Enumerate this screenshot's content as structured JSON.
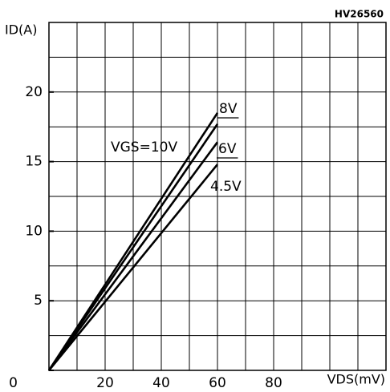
{
  "chart_data": {
    "type": "line",
    "annotation": "HV26560",
    "y_label": "ID(A)",
    "x_label": "VDS(mV)",
    "x": [
      0,
      60
    ],
    "series": [
      {
        "name": "VGS=10V",
        "color": "#000000",
        "values": [
          0,
          18.5
        ]
      },
      {
        "name": "8V",
        "color": "#000000",
        "values": [
          0,
          17.7
        ]
      },
      {
        "name": "6V",
        "color": "#000000",
        "values": [
          0,
          16.4
        ]
      },
      {
        "name": "4.5V",
        "color": "#000000",
        "values": [
          0,
          14.8
        ]
      }
    ],
    "xlim": [
      0,
      120
    ],
    "ylim": [
      0,
      25
    ],
    "xticks": [
      0,
      20,
      40,
      60,
      80
    ],
    "yticks": [
      0,
      5,
      10,
      15,
      20
    ],
    "xgrid": [
      0,
      10,
      20,
      30,
      40,
      50,
      60,
      70,
      80,
      90,
      100,
      110,
      120
    ],
    "ygrid": [
      0,
      2.5,
      5,
      7.5,
      10,
      12.5,
      15,
      17.5,
      20,
      22.5,
      25
    ],
    "grid": true
  }
}
